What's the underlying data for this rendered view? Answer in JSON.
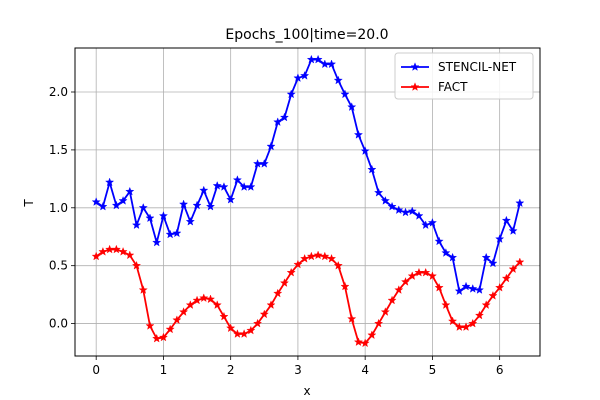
{
  "chart_data": {
    "type": "line",
    "title": "Epochs_100|time=20.0",
    "xlabel": "x",
    "ylabel": "T",
    "xlim": [
      -0.315,
      6.6
    ],
    "ylim": [
      -0.28,
      2.38
    ],
    "xticks": [
      0,
      1,
      2,
      3,
      4,
      5,
      6
    ],
    "yticks": [
      0.0,
      0.5,
      1.0,
      1.5,
      2.0
    ],
    "xtick_labels": [
      "0",
      "1",
      "2",
      "3",
      "4",
      "5",
      "6"
    ],
    "ytick_labels": [
      "0.0",
      "0.5",
      "1.0",
      "1.5",
      "2.0"
    ],
    "grid": true,
    "legend_position": "top-right",
    "x": [
      0.0,
      0.1,
      0.2,
      0.3,
      0.4,
      0.5,
      0.6,
      0.7,
      0.8,
      0.9,
      1.0,
      1.1,
      1.2,
      1.3,
      1.4,
      1.5,
      1.6,
      1.7,
      1.8,
      1.9,
      2.0,
      2.1,
      2.2,
      2.3,
      2.4,
      2.5,
      2.6,
      2.7,
      2.8,
      2.9,
      3.0,
      3.1,
      3.2,
      3.3,
      3.4,
      3.5,
      3.6,
      3.7,
      3.8,
      3.9,
      4.0,
      4.1,
      4.2,
      4.3,
      4.4,
      4.5,
      4.6,
      4.7,
      4.8,
      4.9,
      5.0,
      5.1,
      5.2,
      5.3,
      5.4,
      5.5,
      5.6,
      5.7,
      5.8,
      5.9,
      6.0,
      6.1,
      6.2,
      6.3
    ],
    "series": [
      {
        "name": "STENCIL-NET",
        "color": "#0000ff",
        "marker": "star",
        "values": [
          1.05,
          1.01,
          1.22,
          1.02,
          1.06,
          1.14,
          0.85,
          1.0,
          0.91,
          0.7,
          0.93,
          0.77,
          0.78,
          1.03,
          0.88,
          1.02,
          1.15,
          1.01,
          1.19,
          1.18,
          1.07,
          1.24,
          1.18,
          1.18,
          1.38,
          1.38,
          1.53,
          1.74,
          1.78,
          1.98,
          2.12,
          2.14,
          2.28,
          2.28,
          2.24,
          2.24,
          2.1,
          1.98,
          1.87,
          1.63,
          1.49,
          1.33,
          1.13,
          1.06,
          1.01,
          0.98,
          0.96,
          0.97,
          0.93,
          0.85,
          0.87,
          0.71,
          0.61,
          0.57,
          0.28,
          0.32,
          0.3,
          0.29,
          0.57,
          0.52,
          0.73,
          0.89,
          0.8,
          1.04
        ]
      },
      {
        "name": "FACT",
        "color": "#ff0000",
        "marker": "star",
        "values": [
          0.58,
          0.62,
          0.64,
          0.64,
          0.62,
          0.59,
          0.5,
          0.29,
          -0.02,
          -0.13,
          -0.12,
          -0.05,
          0.03,
          0.1,
          0.16,
          0.2,
          0.22,
          0.21,
          0.16,
          0.06,
          -0.04,
          -0.09,
          -0.09,
          -0.06,
          0.0,
          0.08,
          0.16,
          0.26,
          0.35,
          0.44,
          0.51,
          0.56,
          0.58,
          0.59,
          0.58,
          0.56,
          0.5,
          0.32,
          0.04,
          -0.16,
          -0.17,
          -0.1,
          0.0,
          0.1,
          0.2,
          0.29,
          0.36,
          0.41,
          0.44,
          0.44,
          0.41,
          0.31,
          0.16,
          0.02,
          -0.03,
          -0.03,
          0.0,
          0.07,
          0.16,
          0.24,
          0.31,
          0.39,
          0.47,
          0.53
        ]
      }
    ]
  }
}
